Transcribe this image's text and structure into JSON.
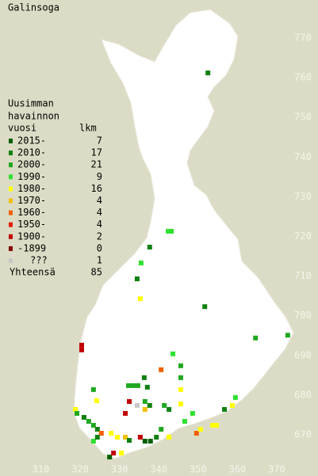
{
  "title": "Galinsoga",
  "legend": {
    "heading": [
      "Uusimman",
      "havainnon",
      "vuosi"
    ],
    "count_heading": "lkm",
    "rows": [
      {
        "label": "2015-",
        "count": 7,
        "color": "#006000"
      },
      {
        "label": "2010-",
        "count": 17,
        "color": "#108010"
      },
      {
        "label": "2000-",
        "count": 21,
        "color": "#20a820"
      },
      {
        "label": "1990-",
        "count": 9,
        "color": "#30e030"
      },
      {
        "label": "1980-",
        "count": 16,
        "color": "#ffff00"
      },
      {
        "label": "1970-",
        "count": 4,
        "color": "#f0c000"
      },
      {
        "label": "1960-",
        "count": 4,
        "color": "#f06000"
      },
      {
        "label": "1950-",
        "count": 4,
        "color": "#e02000"
      },
      {
        "label": "1900-",
        "count": 2,
        "color": "#c00000"
      },
      {
        "label": "-1899",
        "count": 0,
        "color": "#800000"
      },
      {
        "label": "???",
        "count": 1,
        "color": "#c8c8c8"
      }
    ],
    "total_label": "Yhteensä",
    "total": 85
  },
  "x_ticks": [
    310,
    320,
    330,
    340,
    350,
    360,
    370
  ],
  "y_ticks": [
    670,
    680,
    690,
    700,
    710,
    720,
    730,
    740,
    750,
    760,
    770
  ],
  "points": [
    {
      "x": 352.5,
      "y": 761.2,
      "period": 1
    },
    {
      "x": 343.2,
      "y": 721.3,
      "period": 3
    },
    {
      "x": 342.4,
      "y": 721.3,
      "period": 3
    },
    {
      "x": 337.7,
      "y": 717.3,
      "period": 1
    },
    {
      "x": 335.5,
      "y": 713.3,
      "period": 3
    },
    {
      "x": 334.5,
      "y": 709.3,
      "period": 1
    },
    {
      "x": 335.3,
      "y": 704.3,
      "period": 4
    },
    {
      "x": 351.7,
      "y": 702.3,
      "period": 1
    },
    {
      "x": 364.6,
      "y": 694.4,
      "period": 2
    },
    {
      "x": 372.8,
      "y": 695.1,
      "period": 2
    },
    {
      "x": 320.4,
      "y": 692.6,
      "period": 8
    },
    {
      "x": 320.4,
      "y": 691.4,
      "period": 8
    },
    {
      "x": 343.6,
      "y": 690.4,
      "period": 3
    },
    {
      "x": 345.6,
      "y": 687.4,
      "period": 2
    },
    {
      "x": 340.6,
      "y": 686.4,
      "period": 6
    },
    {
      "x": 345.6,
      "y": 684.4,
      "period": 2
    },
    {
      "x": 336.3,
      "y": 684.4,
      "period": 1
    },
    {
      "x": 332.3,
      "y": 682.4,
      "period": 2
    },
    {
      "x": 333.5,
      "y": 682.4,
      "period": 2
    },
    {
      "x": 334.7,
      "y": 682.4,
      "period": 2
    },
    {
      "x": 337.1,
      "y": 682.0,
      "period": 1
    },
    {
      "x": 323.4,
      "y": 681.4,
      "period": 2
    },
    {
      "x": 345.6,
      "y": 681.4,
      "period": 4
    },
    {
      "x": 359.5,
      "y": 679.4,
      "period": 3
    },
    {
      "x": 324.2,
      "y": 678.6,
      "period": 4
    },
    {
      "x": 332.5,
      "y": 678.4,
      "period": 8
    },
    {
      "x": 334.5,
      "y": 677.4,
      "period": 10
    },
    {
      "x": 336.5,
      "y": 678.4,
      "period": 2
    },
    {
      "x": 337.7,
      "y": 677.4,
      "period": 1
    },
    {
      "x": 341.4,
      "y": 677.4,
      "period": 2
    },
    {
      "x": 345.6,
      "y": 677.8,
      "period": 4
    },
    {
      "x": 356.7,
      "y": 676.4,
      "period": 1
    },
    {
      "x": 318.8,
      "y": 676.4,
      "period": 4
    },
    {
      "x": 319.2,
      "y": 675.4,
      "period": 2
    },
    {
      "x": 331.5,
      "y": 675.4,
      "period": 8
    },
    {
      "x": 336.5,
      "y": 676.4,
      "period": 5
    },
    {
      "x": 342.6,
      "y": 676.4,
      "period": 1
    },
    {
      "x": 348.6,
      "y": 675.4,
      "period": 3
    },
    {
      "x": 321.0,
      "y": 674.4,
      "period": 1
    },
    {
      "x": 322.2,
      "y": 673.4,
      "period": 2
    },
    {
      "x": 323.4,
      "y": 672.4,
      "period": 2
    },
    {
      "x": 324.4,
      "y": 671.4,
      "period": 1
    },
    {
      "x": 325.4,
      "y": 670.4,
      "period": 6
    },
    {
      "x": 327.9,
      "y": 670.4,
      "period": 4
    },
    {
      "x": 329.5,
      "y": 669.4,
      "period": 4
    },
    {
      "x": 331.5,
      "y": 669.4,
      "period": 5
    },
    {
      "x": 332.5,
      "y": 668.6,
      "period": 1
    },
    {
      "x": 335.3,
      "y": 669.4,
      "period": 8
    },
    {
      "x": 336.5,
      "y": 668.4,
      "period": 0
    },
    {
      "x": 337.9,
      "y": 668.4,
      "period": 0
    },
    {
      "x": 339.4,
      "y": 669.4,
      "period": 1
    },
    {
      "x": 340.6,
      "y": 671.4,
      "period": 2
    },
    {
      "x": 342.6,
      "y": 669.4,
      "period": 4
    },
    {
      "x": 346.6,
      "y": 673.4,
      "period": 3
    },
    {
      "x": 349.6,
      "y": 670.4,
      "period": 6
    },
    {
      "x": 350.6,
      "y": 671.4,
      "period": 4
    },
    {
      "x": 353.7,
      "y": 672.4,
      "period": 4
    },
    {
      "x": 354.7,
      "y": 672.4,
      "period": 4
    },
    {
      "x": 327.5,
      "y": 664.4,
      "period": 0
    },
    {
      "x": 328.5,
      "y": 665.4,
      "period": 8
    },
    {
      "x": 330.5,
      "y": 665.4,
      "period": 4
    },
    {
      "x": 323.4,
      "y": 668.4,
      "period": 3
    },
    {
      "x": 324.4,
      "y": 669.4,
      "period": 1
    },
    {
      "x": 358.7,
      "y": 677.4,
      "period": 4
    }
  ]
}
